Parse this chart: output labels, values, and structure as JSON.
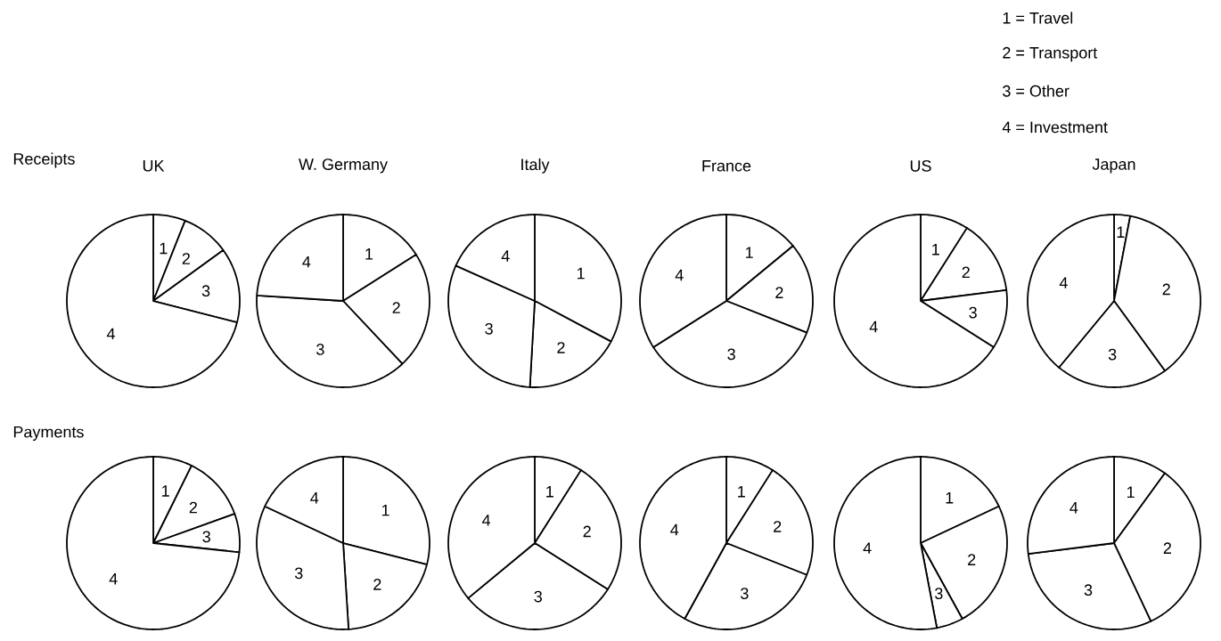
{
  "chart_data": [
    {
      "type": "other",
      "annotations": [
        "1 = Travel",
        "2 = Transport",
        "3 = Other",
        "4 = Investment"
      ]
    },
    {
      "type": "other",
      "title": "Receipts"
    },
    {
      "type": "pie",
      "title": "UK",
      "categories": [
        "1",
        "2",
        "3",
        "4"
      ],
      "values": [
        6,
        9,
        14,
        71
      ],
      "colors": [
        "#ffffff",
        "#ffffff",
        "#ffffff",
        "#ffffff"
      ]
    },
    {
      "type": "pie",
      "title": "W. Germany",
      "categories": [
        "1",
        "2",
        "3",
        "4"
      ],
      "values": [
        16,
        22,
        38,
        24
      ],
      "colors": [
        "#ffffff",
        "#ffffff",
        "#ffffff",
        "#ffffff"
      ]
    },
    {
      "type": "pie",
      "title": "Italy",
      "categories": [
        "1",
        "2",
        "3",
        "4"
      ],
      "values": [
        32.8,
        18.1,
        30.8,
        18.3
      ],
      "colors": [
        "#ffffff",
        "#ffffff",
        "#ffffff",
        "#ffffff"
      ]
    },
    {
      "type": "pie",
      "title": "France",
      "categories": [
        "1",
        "2",
        "3",
        "4"
      ],
      "values": [
        14,
        17,
        35,
        34
      ],
      "colors": [
        "#ffffff",
        "#ffffff",
        "#ffffff",
        "#ffffff"
      ]
    },
    {
      "type": "pie",
      "title": "US",
      "categories": [
        "1",
        "2",
        "3",
        "4"
      ],
      "values": [
        9,
        14,
        11,
        66
      ],
      "colors": [
        "#ffffff",
        "#ffffff",
        "#ffffff",
        "#ffffff"
      ]
    },
    {
      "type": "pie",
      "title": "Japan",
      "categories": [
        "1",
        "2",
        "3",
        "4"
      ],
      "values": [
        3,
        37,
        21,
        39
      ],
      "colors": [
        "#ffffff",
        "#ffffff",
        "#ffffff",
        "#ffffff"
      ]
    },
    {
      "type": "other",
      "title": "Payments"
    },
    {
      "type": "pie",
      "categories": [
        "1",
        "2",
        "3",
        "4"
      ],
      "values": [
        7.3,
        12.2,
        7.2,
        73.3
      ],
      "colors": [
        "#ffffff",
        "#ffffff",
        "#ffffff",
        "#ffffff"
      ]
    },
    {
      "type": "pie",
      "categories": [
        "1",
        "2",
        "3",
        "4"
      ],
      "values": [
        29,
        20,
        33,
        18
      ],
      "colors": [
        "#ffffff",
        "#ffffff",
        "#ffffff",
        "#ffffff"
      ]
    },
    {
      "type": "pie",
      "categories": [
        "1",
        "2",
        "3",
        "4"
      ],
      "values": [
        9,
        25,
        30,
        36
      ],
      "colors": [
        "#ffffff",
        "#ffffff",
        "#ffffff",
        "#ffffff"
      ]
    },
    {
      "type": "pie",
      "categories": [
        "1",
        "2",
        "3",
        "4"
      ],
      "values": [
        9,
        22,
        27,
        42
      ],
      "colors": [
        "#ffffff",
        "#ffffff",
        "#ffffff",
        "#ffffff"
      ]
    },
    {
      "type": "pie",
      "categories": [
        "1",
        "2",
        "3",
        "4"
      ],
      "values": [
        18,
        24,
        5,
        53
      ],
      "colors": [
        "#ffffff",
        "#ffffff",
        "#ffffff",
        "#ffffff"
      ]
    },
    {
      "type": "pie",
      "categories": [
        "1",
        "2",
        "3",
        "4"
      ],
      "values": [
        10,
        33,
        30,
        27
      ],
      "colors": [
        "#ffffff",
        "#ffffff",
        "#ffffff",
        "#ffffff"
      ]
    }
  ]
}
